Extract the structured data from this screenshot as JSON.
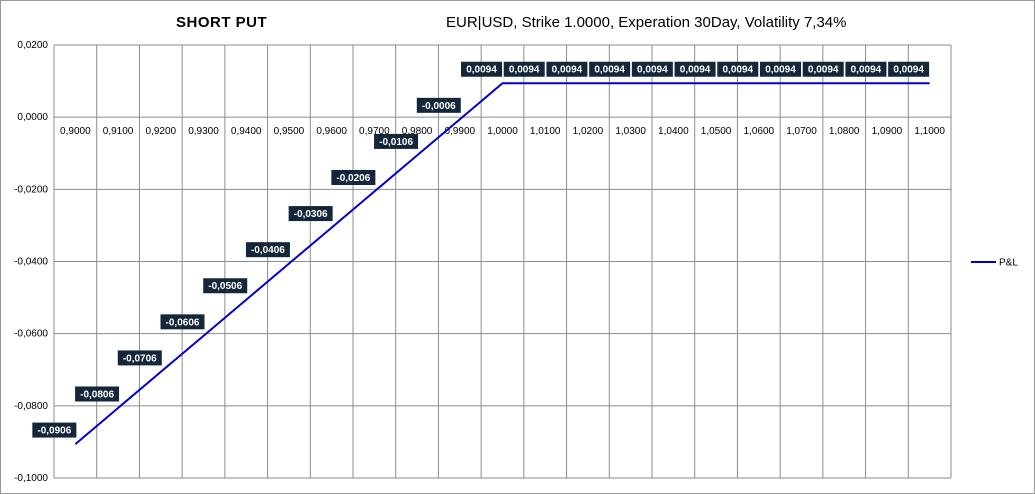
{
  "chart_data": {
    "type": "line",
    "title": "SHORT PUT",
    "subtitle": "EUR|USD,  Strike 1.0000, Experation 30Day, Volatility 7,34%",
    "xlabel": "",
    "ylabel": "",
    "categories": [
      "0,9000",
      "0,9100",
      "0,9200",
      "0,9300",
      "0,9400",
      "0,9500",
      "0,9600",
      "0,9700",
      "0,9800",
      "0,9900",
      "1,0000",
      "1,0100",
      "1,0200",
      "1,0300",
      "1,0400",
      "1,0500",
      "1,0600",
      "1,0700",
      "1,0800",
      "1,0900",
      "1,1000"
    ],
    "series": [
      {
        "name": "P&L",
        "color": "#0000cc",
        "values": [
          -0.0906,
          -0.0806,
          -0.0706,
          -0.0606,
          -0.0506,
          -0.0406,
          -0.0306,
          -0.0206,
          -0.0106,
          -0.0006,
          0.0094,
          0.0094,
          0.0094,
          0.0094,
          0.0094,
          0.0094,
          0.0094,
          0.0094,
          0.0094,
          0.0094,
          0.0094
        ],
        "labels": [
          "-0,0906",
          "-0,0806",
          "-0,0706",
          "-0,0606",
          "-0,0506",
          "-0,0406",
          "-0,0306",
          "-0,0206",
          "-0,0106",
          "-0,0006",
          "0,0094",
          "0,0094",
          "0,0094",
          "0,0094",
          "0,0094",
          "0,0094",
          "0,0094",
          "0,0094",
          "0,0094",
          "0,0094",
          "0,0094"
        ]
      }
    ],
    "ylim": [
      -0.1,
      0.02
    ],
    "yticks": [
      0.02,
      0.0,
      -0.02,
      -0.04,
      -0.06,
      -0.08,
      -0.1
    ],
    "ytick_labels": [
      "0,0200",
      "0,0000",
      "-0,0200",
      "-0,0400",
      "-0,0600",
      "-0,0800",
      "-0,1000"
    ],
    "grid": true,
    "legend_position": "right",
    "label_box_color": "#14273a"
  }
}
